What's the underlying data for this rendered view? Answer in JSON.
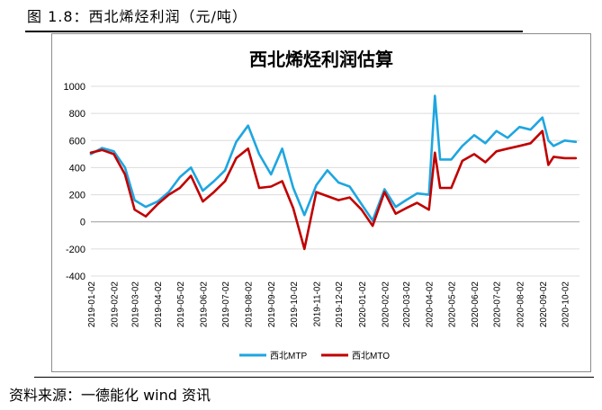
{
  "figure_title": "图 1.8：西北烯烃利润（元/吨）",
  "source": "资料来源：一德能化 wind 资讯",
  "chart_data": {
    "type": "line",
    "title": "西北烯烃利润估算",
    "xlabel": "",
    "ylabel": "",
    "ylim": [
      -400,
      1000
    ],
    "y_ticks": [
      "1000",
      "800",
      "600",
      "400",
      "200",
      "0",
      "-200",
      "-400"
    ],
    "x_tick_labels": [
      "2019-01-02",
      "2019-02-02",
      "2019-03-02",
      "2019-04-02",
      "2019-05-02",
      "2019-06-02",
      "2019-07-02",
      "2019-08-02",
      "2019-09-02",
      "2019-10-02",
      "2019-11-02",
      "2019-12-02",
      "2020-01-02",
      "2020-02-02",
      "2020-03-02",
      "2020-04-02",
      "2020-05-02",
      "2020-06-02",
      "2020-07-02",
      "2020-08-02",
      "2020-09-02",
      "2020-10-02"
    ],
    "grid": "horizontal",
    "legend_position": "bottom",
    "x": [
      "2019-01-02",
      "2019-01-17",
      "2019-02-02",
      "2019-02-17",
      "2019-03-02",
      "2019-03-17",
      "2019-04-02",
      "2019-04-17",
      "2019-05-02",
      "2019-05-17",
      "2019-06-02",
      "2019-06-17",
      "2019-07-02",
      "2019-07-17",
      "2019-08-02",
      "2019-08-17",
      "2019-09-02",
      "2019-09-17",
      "2019-10-02",
      "2019-10-17",
      "2019-11-02",
      "2019-11-17",
      "2019-12-02",
      "2019-12-17",
      "2020-01-02",
      "2020-01-17",
      "2020-02-02",
      "2020-02-17",
      "2020-03-02",
      "2020-03-17",
      "2020-04-02",
      "2020-04-10",
      "2020-04-17",
      "2020-05-02",
      "2020-05-17",
      "2020-06-02",
      "2020-06-17",
      "2020-07-02",
      "2020-07-17",
      "2020-08-02",
      "2020-08-17",
      "2020-09-02",
      "2020-09-10",
      "2020-09-17",
      "2020-10-02",
      "2020-10-17"
    ],
    "series": [
      {
        "name": "西北MTP",
        "color": "#1ea6e0",
        "values": [
          500,
          545,
          520,
          400,
          160,
          110,
          150,
          220,
          330,
          400,
          230,
          300,
          380,
          590,
          710,
          500,
          350,
          540,
          250,
          50,
          270,
          380,
          290,
          260,
          130,
          10,
          240,
          110,
          160,
          210,
          200,
          930,
          460,
          460,
          560,
          640,
          580,
          670,
          620,
          700,
          680,
          770,
          600,
          560,
          600,
          590
        ]
      },
      {
        "name": "西北MTO",
        "color": "#c00000",
        "values": [
          510,
          530,
          500,
          350,
          90,
          40,
          130,
          200,
          250,
          340,
          150,
          220,
          300,
          470,
          540,
          250,
          260,
          300,
          100,
          -200,
          220,
          190,
          160,
          180,
          90,
          -30,
          220,
          60,
          100,
          140,
          90,
          510,
          250,
          250,
          450,
          500,
          440,
          520,
          540,
          560,
          580,
          670,
          420,
          480,
          470,
          470
        ]
      }
    ]
  }
}
